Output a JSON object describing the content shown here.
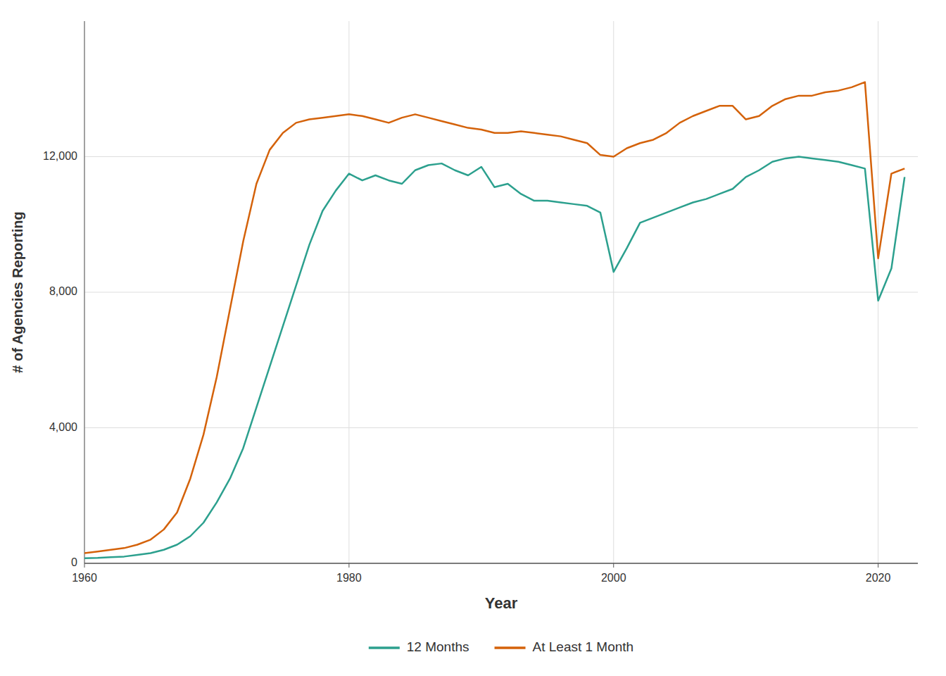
{
  "chart_data": {
    "type": "line",
    "xlabel": "Year",
    "ylabel": "# of Agencies Reporting",
    "x": [
      1960,
      1961,
      1962,
      1963,
      1964,
      1965,
      1966,
      1967,
      1968,
      1969,
      1970,
      1971,
      1972,
      1973,
      1974,
      1975,
      1976,
      1977,
      1978,
      1979,
      1980,
      1981,
      1982,
      1983,
      1984,
      1985,
      1986,
      1987,
      1988,
      1989,
      1990,
      1991,
      1992,
      1993,
      1994,
      1995,
      1996,
      1997,
      1998,
      1999,
      2000,
      2001,
      2002,
      2003,
      2004,
      2005,
      2006,
      2007,
      2008,
      2009,
      2010,
      2011,
      2012,
      2013,
      2014,
      2015,
      2016,
      2017,
      2018,
      2019,
      2020,
      2021,
      2022
    ],
    "series": [
      {
        "name": "12 Months",
        "color": "#2ca08e",
        "values": [
          150,
          160,
          180,
          200,
          250,
          300,
          400,
          550,
          800,
          1200,
          1800,
          2500,
          3400,
          4600,
          5800,
          7000,
          8200,
          9400,
          10400,
          11000,
          11500,
          11300,
          11450,
          11300,
          11200,
          11600,
          11750,
          11800,
          11600,
          11450,
          11700,
          11100,
          11200,
          10900,
          10700,
          10700,
          10650,
          10600,
          10550,
          10350,
          8600,
          9300,
          10050,
          10200,
          10350,
          10500,
          10650,
          10750,
          10900,
          11050,
          11400,
          11600,
          11850,
          11950,
          12000,
          11950,
          11900,
          11850,
          11750,
          11650,
          7750,
          8700,
          11400
        ]
      },
      {
        "name": "At Least 1 Month",
        "color": "#d4620a",
        "values": [
          300,
          350,
          400,
          450,
          550,
          700,
          1000,
          1500,
          2500,
          3800,
          5500,
          7500,
          9500,
          11200,
          12200,
          12700,
          13000,
          13100,
          13150,
          13200,
          13250,
          13200,
          13100,
          13000,
          13150,
          13250,
          13150,
          13050,
          12950,
          12850,
          12800,
          12700,
          12700,
          12750,
          12700,
          12650,
          12600,
          12500,
          12400,
          12050,
          12000,
          12250,
          12400,
          12500,
          12700,
          13000,
          13200,
          13350,
          13500,
          13500,
          13100,
          13200,
          13500,
          13700,
          13800,
          13800,
          13900,
          13950,
          14050,
          14200,
          9000,
          11500,
          11650
        ]
      }
    ],
    "xlim": [
      1960,
      2023
    ],
    "xticks": [
      1960,
      1980,
      2000,
      2020
    ],
    "ylim": [
      0,
      16000
    ],
    "yticks": [
      0,
      {
        "value": 4000,
        "label": "4,000"
      },
      {
        "value": 8000,
        "label": "8,000"
      },
      {
        "value": 12000,
        "label": "12,000"
      }
    ],
    "grid": true,
    "legend": "bottom"
  }
}
